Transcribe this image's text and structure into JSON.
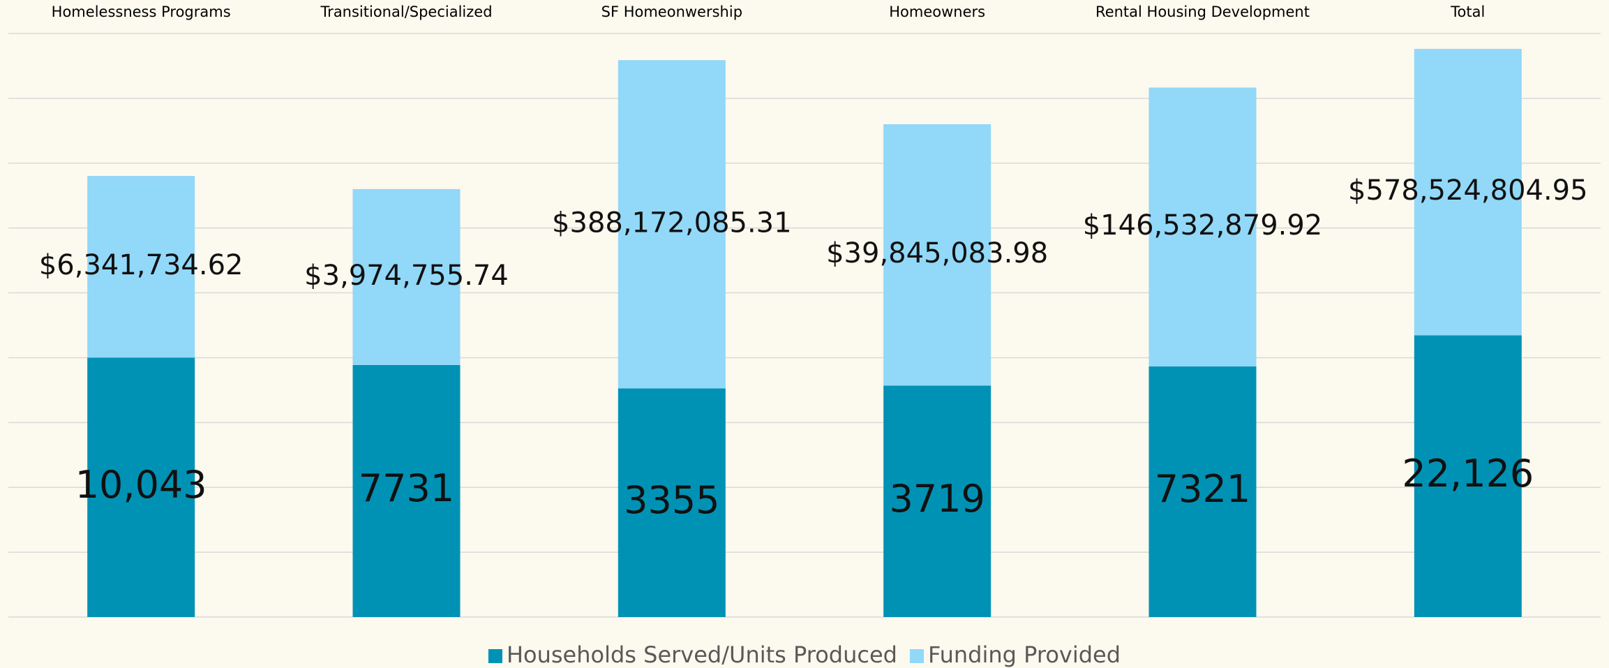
{
  "chart_data": {
    "type": "bar",
    "stacked": true,
    "log_scale": true,
    "categories": [
      "Homelessness Programs",
      "Transitional/Specialized",
      "SF Homeonwership",
      "Homeowners",
      "Rental Housing Development",
      "Total"
    ],
    "series": [
      {
        "name": "Households Served/Units Produced",
        "color": "#0092b5",
        "values": [
          10043,
          7731,
          3355,
          3719,
          7321,
          22126
        ],
        "value_labels": [
          "10,043",
          "7731",
          "3355",
          "3719",
          "7321",
          "22,126"
        ]
      },
      {
        "name": "Funding Provided",
        "color": "#92d8f8",
        "values": [
          6341734.62,
          3974755.74,
          388172085.31,
          39845083.98,
          146532879.92,
          578524804.95
        ],
        "value_labels": [
          "$6,341,734.62",
          "$3,974,755.74",
          "$388,172,085.31",
          "$39,845,083.98",
          "$146,532,879.92",
          "$578,524,804.95"
        ]
      }
    ],
    "ylim": [
      1,
      1000000000
    ],
    "yticks": [
      1,
      10,
      100,
      1000,
      10000,
      100000,
      1000000,
      10000000,
      100000000,
      1000000000
    ],
    "grid": true,
    "legend": "bottom"
  }
}
